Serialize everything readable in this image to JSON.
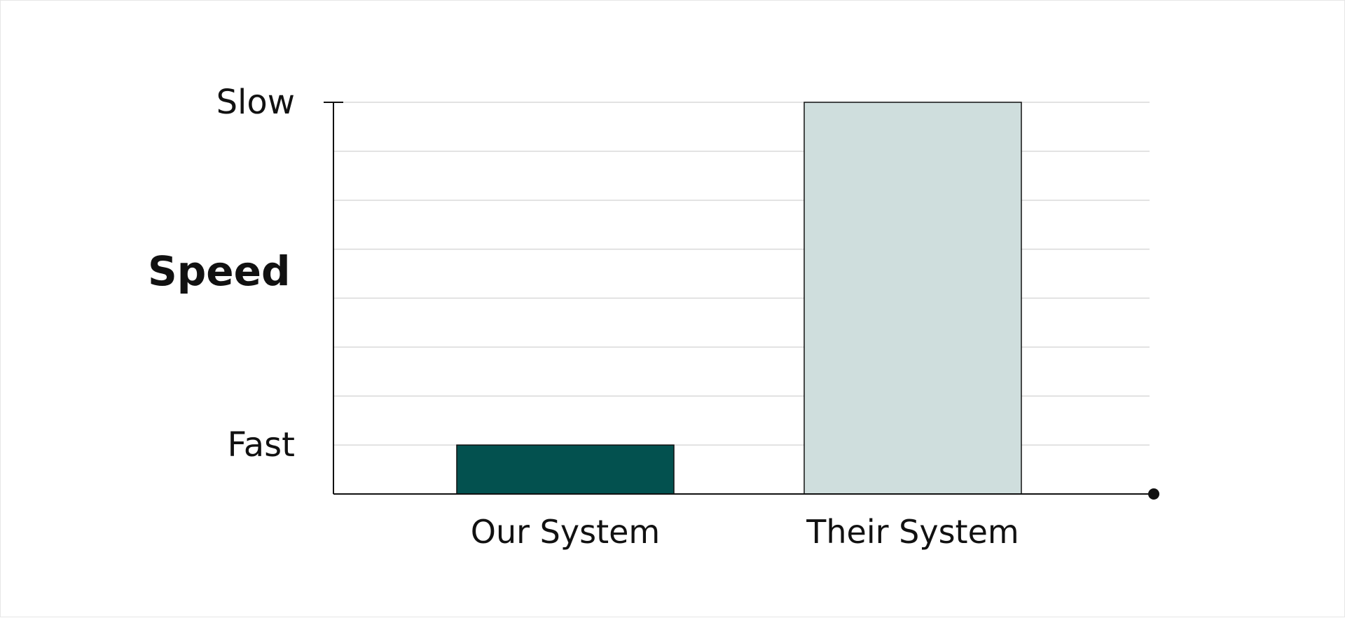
{
  "chart_data": {
    "type": "bar",
    "ylabel": "Speed",
    "xlabel": "",
    "categories": [
      "Our System",
      "Their System"
    ],
    "values": [
      1,
      8
    ],
    "ylim": [
      0,
      8
    ],
    "y_tick_labels": [
      {
        "value": 1,
        "label": "Fast"
      },
      {
        "value": 8,
        "label": "Slow"
      }
    ],
    "gridlines": [
      1,
      2,
      3,
      4,
      5,
      6,
      7,
      8
    ],
    "grid": true,
    "legend": "none",
    "colors": {
      "our_system": "#03514F",
      "their_system": "#CFDEDD",
      "axis": "#111111",
      "grid": "#D9D9D9",
      "bar_outline": "#111111"
    }
  }
}
